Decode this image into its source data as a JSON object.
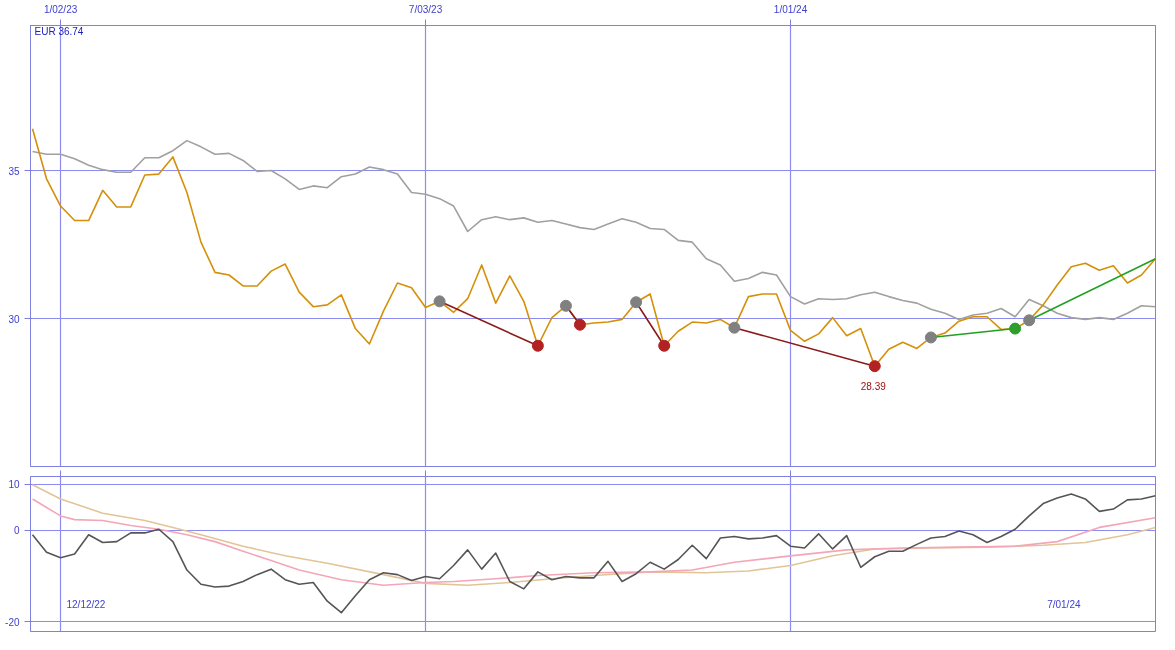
{
  "chart_data": [
    {
      "type": "line",
      "x": [
        "2022-12-19",
        "2022-12-26",
        "2023-01-02",
        "2023-01-09",
        "2023-01-16",
        "2023-01-23",
        "2023-01-30",
        "2023-02-06",
        "2023-02-13",
        "2023-02-20",
        "2023-02-27",
        "2023-03-06",
        "2023-03-13",
        "2023-03-20",
        "2023-03-27",
        "2023-04-03",
        "2023-04-10",
        "2023-04-17",
        "2023-04-24",
        "2023-05-01",
        "2023-05-08",
        "2023-05-15",
        "2023-05-22",
        "2023-05-29",
        "2023-06-05",
        "2023-06-12",
        "2023-06-19",
        "2023-06-26",
        "2023-07-03",
        "2023-07-10",
        "2023-07-17",
        "2023-07-24",
        "2023-07-31",
        "2023-08-07",
        "2023-08-14",
        "2023-08-21",
        "2023-08-28",
        "2023-09-04",
        "2023-09-11",
        "2023-09-18",
        "2023-09-25",
        "2023-10-02",
        "2023-10-09",
        "2023-10-16",
        "2023-10-23",
        "2023-10-30",
        "2023-11-06",
        "2023-11-13",
        "2023-11-20",
        "2023-11-27",
        "2023-12-04",
        "2023-12-11",
        "2023-12-18",
        "2023-12-25",
        "2024-01-01",
        "2024-01-08",
        "2024-01-15",
        "2024-01-22",
        "2024-01-29",
        "2024-02-05",
        "2024-02-12",
        "2024-02-19",
        "2024-02-26",
        "2024-03-04",
        "2024-03-11",
        "2024-03-18",
        "2024-03-25",
        "2024-04-01",
        "2024-04-08",
        "2024-04-15",
        "2024-04-22",
        "2024-04-29",
        "2024-05-06",
        "2024-05-13",
        "2024-05-20",
        "2024-05-27",
        "2024-06-03",
        "2024-06-10",
        "2024-06-17",
        "2024-06-24",
        "2024-07-01"
      ],
      "series": [
        {
          "color": "#a0a0a0",
          "values": [
            35.64,
            35.55,
            35.55,
            35.4,
            35.18,
            35.03,
            34.94,
            34.94,
            35.43,
            35.43,
            35.67,
            36.01,
            35.8,
            35.55,
            35.58,
            35.34,
            34.97,
            35.0,
            34.72,
            34.36,
            34.48,
            34.42,
            34.79,
            34.88,
            35.12,
            35.03,
            34.88,
            34.26,
            34.2,
            34.05,
            33.8,
            32.94,
            33.34,
            33.44,
            33.34,
            33.4,
            33.25,
            33.31,
            33.19,
            33.07,
            33.01,
            33.19,
            33.37,
            33.25,
            33.04,
            33.01,
            32.64,
            32.58,
            32.02,
            31.81,
            31.26,
            31.35,
            31.56,
            31.47,
            30.74,
            30.49,
            30.67,
            30.64,
            30.67,
            30.8,
            30.89,
            30.74,
            30.61,
            30.52,
            30.31,
            30.18,
            29.97,
            30.12,
            30.18,
            30.34,
            30.06,
            30.64,
            30.43,
            30.18,
            30.03,
            29.97,
            30.03,
            29.97,
            30.18,
            30.43,
            30.4
          ]
        },
        {
          "color": "#d4900a",
          "values": [
            36.41,
            34.72,
            33.8,
            33.31,
            33.31,
            34.33,
            33.77,
            33.77,
            34.85,
            34.88,
            35.46,
            34.26,
            32.58,
            31.56,
            31.47,
            31.1,
            31.1,
            31.6,
            31.84,
            30.89,
            30.4,
            30.46,
            30.8,
            29.66,
            29.14,
            30.25,
            31.2,
            31.04,
            30.37,
            30.58,
            30.21,
            30.67,
            31.81,
            30.52,
            31.44,
            30.58,
            29.08,
            30.03,
            30.43,
            29.79,
            29.85,
            29.88,
            29.97,
            30.55,
            30.83,
            29.08,
            29.57,
            29.88,
            29.85,
            29.97,
            29.69,
            30.74,
            30.83,
            30.83,
            29.6,
            29.23,
            29.48,
            30.03,
            29.42,
            29.66,
            28.39,
            28.96,
            29.2,
            28.99,
            29.36,
            29.51,
            29.91,
            30.06,
            30.06,
            29.63,
            29.66,
            29.94,
            30.46,
            31.13,
            31.75,
            31.87,
            31.63,
            31.78,
            31.2,
            31.47,
            32.02
          ]
        },
        {
          "color": "#8b1a1a",
          "x": [
            "2023-07-10",
            "2023-08-28"
          ],
          "values": [
            30.58,
            29.08
          ]
        },
        {
          "color": "#8b1a1a",
          "x": [
            "2023-09-11",
            "2023-09-18"
          ],
          "values": [
            30.43,
            29.79
          ]
        },
        {
          "color": "#8b1a1a",
          "x": [
            "2023-10-16",
            "2023-10-30"
          ],
          "values": [
            30.55,
            29.08
          ]
        },
        {
          "color": "#8b1a1a",
          "x": [
            "2023-12-04",
            "2024-02-12"
          ],
          "values": [
            29.69,
            28.39
          ]
        },
        {
          "color": "#22a022",
          "x": [
            "2024-03-11",
            "2024-04-22"
          ],
          "values": [
            29.36,
            29.66
          ]
        },
        {
          "color": "#22a022",
          "x": [
            "2024-04-29",
            "2024-07-01"
          ],
          "values": [
            29.94,
            32.02
          ]
        },
        {
          "type": "scatter",
          "marker": "circle",
          "color": "#808080",
          "x": [
            "2023-07-10",
            "2023-09-11",
            "2023-10-16",
            "2023-12-04",
            "2024-03-11",
            "2024-04-29"
          ],
          "values": [
            30.58,
            30.43,
            30.55,
            29.69,
            29.36,
            29.94
          ]
        },
        {
          "type": "scatter",
          "marker": "circle",
          "color": "#b22222",
          "x": [
            "2023-08-28",
            "2023-09-18",
            "2023-10-30",
            "2024-02-12"
          ],
          "values": [
            29.08,
            29.79,
            29.08,
            28.39
          ]
        },
        {
          "type": "scatter",
          "marker": "circle",
          "color": "#2e9e2e",
          "x": [
            "2024-04-22"
          ],
          "values": [
            29.66
          ]
        }
      ],
      "xlim": [
        "2022-12-18",
        "2024-07-01"
      ],
      "xticks": [
        {
          "value": "2023-01-02",
          "label": "1/02/23"
        },
        {
          "value": "2023-07-03",
          "label": "7/03/23"
        },
        {
          "value": "2024-01-01",
          "label": "1/01/24"
        }
      ],
      "ylim": [
        25,
        39.9
      ],
      "yticks": [
        30,
        35
      ],
      "grid": true,
      "annotations": [
        "EUR 36.74",
        {
          "text": "28.39",
          "x": "2024-02-12",
          "y": 28.39
        }
      ]
    },
    {
      "type": "line",
      "x": [
        "2022-12-19",
        "2022-12-26",
        "2023-01-02",
        "2023-01-09",
        "2023-01-16",
        "2023-01-23",
        "2023-01-30",
        "2023-02-06",
        "2023-02-13",
        "2023-02-20",
        "2023-02-27",
        "2023-03-06",
        "2023-03-13",
        "2023-03-20",
        "2023-03-27",
        "2023-04-03",
        "2023-04-10",
        "2023-04-17",
        "2023-04-24",
        "2023-05-01",
        "2023-05-08",
        "2023-05-15",
        "2023-05-22",
        "2023-05-29",
        "2023-06-05",
        "2023-06-12",
        "2023-06-19",
        "2023-06-26",
        "2023-07-03",
        "2023-07-10",
        "2023-07-17",
        "2023-07-24",
        "2023-07-31",
        "2023-08-07",
        "2023-08-14",
        "2023-08-21",
        "2023-08-28",
        "2023-09-04",
        "2023-09-11",
        "2023-09-18",
        "2023-09-25",
        "2023-10-02",
        "2023-10-09",
        "2023-10-16",
        "2023-10-23",
        "2023-10-30",
        "2023-11-06",
        "2023-11-13",
        "2023-11-20",
        "2023-11-27",
        "2023-12-04",
        "2023-12-11",
        "2023-12-18",
        "2023-12-25",
        "2024-01-01",
        "2024-01-08",
        "2024-01-15",
        "2024-01-22",
        "2024-01-29",
        "2024-02-05",
        "2024-02-12",
        "2024-02-19",
        "2024-02-26",
        "2024-03-04",
        "2024-03-11",
        "2024-03-18",
        "2024-03-25",
        "2024-04-01",
        "2024-04-08",
        "2024-04-15",
        "2024-04-22",
        "2024-04-29",
        "2024-05-06",
        "2024-05-13",
        "2024-05-20",
        "2024-05-27",
        "2024-06-03",
        "2024-06-10",
        "2024-06-17",
        "2024-06-24",
        "2024-07-01"
      ],
      "series": [
        {
          "color": "#e3c497",
          "x": [
            "2022-12-19",
            "2023-01-02",
            "2023-01-23",
            "2023-02-13",
            "2023-02-27",
            "2023-03-13",
            "2023-04-03",
            "2023-04-24",
            "2023-05-15",
            "2023-06-12",
            "2023-07-03",
            "2023-07-24",
            "2023-08-14",
            "2023-09-04",
            "2023-09-25",
            "2023-10-23",
            "2023-11-20",
            "2023-12-11",
            "2024-01-01",
            "2024-01-22",
            "2024-02-12",
            "2024-03-11",
            "2024-04-08",
            "2024-05-06",
            "2024-05-27",
            "2024-06-17",
            "2024-07-01"
          ],
          "values": [
            9.9,
            6.8,
            3.7,
            2.1,
            0.6,
            -1.0,
            -3.5,
            -5.6,
            -7.2,
            -9.7,
            -11.6,
            -12.0,
            -11.4,
            -10.6,
            -9.9,
            -9.1,
            -9.3,
            -8.9,
            -7.7,
            -5.6,
            -4.1,
            -3.9,
            -3.7,
            -3.3,
            -2.7,
            -1.0,
            0.6
          ]
        },
        {
          "color": "#f4a6b8",
          "x": [
            "2022-12-19",
            "2023-01-02",
            "2023-01-09",
            "2023-01-23",
            "2023-02-06",
            "2023-02-20",
            "2023-03-06",
            "2023-03-20",
            "2023-04-03",
            "2023-04-17",
            "2023-05-01",
            "2023-05-22",
            "2023-06-12",
            "2023-07-03",
            "2023-07-17",
            "2023-08-07",
            "2023-08-28",
            "2023-09-25",
            "2023-10-23",
            "2023-11-13",
            "2023-12-04",
            "2024-01-01",
            "2024-01-29",
            "2024-02-26",
            "2024-03-25",
            "2024-04-22",
            "2024-05-13",
            "2024-06-03",
            "2024-07-01"
          ],
          "values": [
            6.8,
            3.1,
            2.3,
            2.1,
            1.0,
            0.2,
            -1.0,
            -2.5,
            -4.6,
            -6.6,
            -8.7,
            -10.8,
            -12.0,
            -11.4,
            -11.2,
            -10.6,
            -9.9,
            -9.3,
            -9.1,
            -8.7,
            -7.0,
            -5.6,
            -4.3,
            -3.9,
            -3.7,
            -3.5,
            -2.5,
            0.6,
            2.7
          ]
        },
        {
          "color": "#555555",
          "values": [
            -1.0,
            -4.8,
            -6.0,
            -5.2,
            -1.0,
            -2.7,
            -2.5,
            -0.6,
            -0.6,
            0.2,
            -2.5,
            -8.7,
            -11.8,
            -12.4,
            -12.2,
            -11.2,
            -9.7,
            -8.5,
            -10.8,
            -11.8,
            -11.4,
            -15.5,
            -18.0,
            -14.3,
            -10.8,
            -9.3,
            -9.7,
            -11.0,
            -10.1,
            -10.6,
            -7.7,
            -4.3,
            -8.5,
            -5.0,
            -11.2,
            -12.8,
            -9.1,
            -10.8,
            -10.1,
            -10.4,
            -10.4,
            -6.8,
            -11.2,
            -9.5,
            -7.0,
            -8.5,
            -6.4,
            -3.3,
            -6.2,
            -1.7,
            -1.4,
            -1.9,
            -1.7,
            -1.2,
            -3.5,
            -3.9,
            -0.8,
            -4.1,
            -1.2,
            -8.1,
            -5.8,
            -4.6,
            -4.6,
            -3.1,
            -1.7,
            -1.4,
            -0.2,
            -1.0,
            -2.7,
            -1.4,
            0.2,
            3.1,
            5.8,
            7.0,
            7.9,
            6.8,
            4.1,
            4.6,
            6.6,
            6.8,
            7.5
          ]
        }
      ],
      "xlim": [
        "2022-12-18",
        "2024-07-01"
      ],
      "xticks": [
        {
          "value": "2023-01-02",
          "label": null
        },
        {
          "value": "2023-07-03",
          "label": null
        },
        {
          "value": "2024-01-01",
          "label": null
        }
      ],
      "ylim": [
        -22.1,
        11.7
      ],
      "yticks": [
        10,
        0,
        -20
      ],
      "grid": true,
      "tick_labels": "y",
      "annotations": [
        "12/12/22",
        "7/01/24"
      ]
    }
  ]
}
